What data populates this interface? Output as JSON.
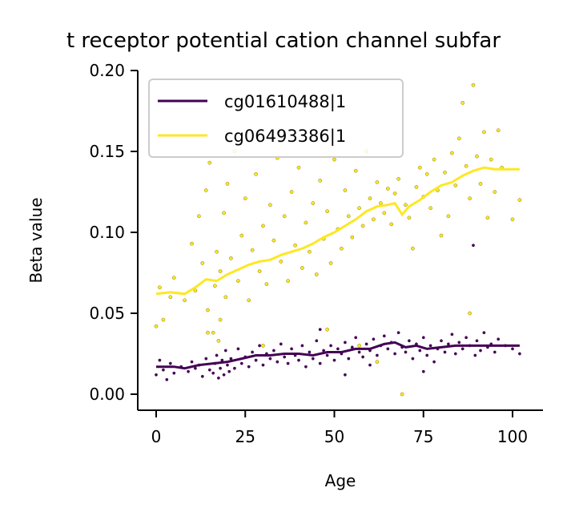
{
  "chart_data": {
    "type": "scatter",
    "title": "t receptor potential cation channel subfar",
    "xlabel": "Age",
    "ylabel": "Beta value",
    "xlim": [
      -5,
      107
    ],
    "ylim": [
      -0.01,
      0.2
    ],
    "xticks": [
      "0",
      "25",
      "50",
      "75",
      "100"
    ],
    "yticks": [
      "0.00",
      "0.05",
      "0.10",
      "0.15",
      "0.20"
    ],
    "grid": false,
    "legend_position": "top-left",
    "series": [
      {
        "name": "cg01610488|1",
        "color": "#440154",
        "trend": [
          [
            0,
            0.017
          ],
          [
            5,
            0.017
          ],
          [
            8,
            0.016
          ],
          [
            12,
            0.018
          ],
          [
            16,
            0.019
          ],
          [
            20,
            0.02
          ],
          [
            24,
            0.022
          ],
          [
            28,
            0.024
          ],
          [
            32,
            0.024
          ],
          [
            36,
            0.025
          ],
          [
            40,
            0.025
          ],
          [
            44,
            0.024
          ],
          [
            48,
            0.026
          ],
          [
            52,
            0.026
          ],
          [
            56,
            0.028
          ],
          [
            60,
            0.028
          ],
          [
            64,
            0.031
          ],
          [
            67,
            0.032
          ],
          [
            70,
            0.029
          ],
          [
            73,
            0.03
          ],
          [
            76,
            0.028
          ],
          [
            80,
            0.029
          ],
          [
            84,
            0.03
          ],
          [
            88,
            0.03
          ],
          [
            92,
            0.03
          ],
          [
            96,
            0.03
          ],
          [
            102,
            0.03
          ]
        ],
        "points": [
          [
            0,
            0.012
          ],
          [
            1,
            0.021
          ],
          [
            2,
            0.015
          ],
          [
            3,
            0.009
          ],
          [
            4,
            0.019
          ],
          [
            5,
            0.013
          ],
          [
            7,
            0.017
          ],
          [
            9,
            0.014
          ],
          [
            10,
            0.02
          ],
          [
            11,
            0.016
          ],
          [
            12,
            0.018
          ],
          [
            13,
            0.011
          ],
          [
            14,
            0.022
          ],
          [
            15,
            0.015
          ],
          [
            16,
            0.013
          ],
          [
            16.5,
            0.019
          ],
          [
            17,
            0.024
          ],
          [
            17.5,
            0.01
          ],
          [
            18,
            0.016
          ],
          [
            18.5,
            0.021
          ],
          [
            19,
            0.012
          ],
          [
            19.5,
            0.027
          ],
          [
            20,
            0.018
          ],
          [
            20.5,
            0.014
          ],
          [
            21,
            0.022
          ],
          [
            22,
            0.016
          ],
          [
            23,
            0.028
          ],
          [
            24,
            0.019
          ],
          [
            25,
            0.023
          ],
          [
            26,
            0.017
          ],
          [
            27,
            0.026
          ],
          [
            28,
            0.021
          ],
          [
            29,
            0.03
          ],
          [
            30,
            0.018
          ],
          [
            31,
            0.025
          ],
          [
            32,
            0.022
          ],
          [
            33,
            0.027
          ],
          [
            34,
            0.02
          ],
          [
            35,
            0.031
          ],
          [
            36,
            0.023
          ],
          [
            37,
            0.019
          ],
          [
            38,
            0.028
          ],
          [
            39,
            0.024
          ],
          [
            40,
            0.021
          ],
          [
            41,
            0.03
          ],
          [
            42,
            0.017
          ],
          [
            43,
            0.026
          ],
          [
            44,
            0.022
          ],
          [
            45,
            0.033
          ],
          [
            46,
            0.019
          ],
          [
            47,
            0.027
          ],
          [
            48,
            0.024
          ],
          [
            49,
            0.03
          ],
          [
            50,
            0.021
          ],
          [
            51,
            0.028
          ],
          [
            52,
            0.025
          ],
          [
            53,
            0.032
          ],
          [
            54,
            0.022
          ],
          [
            55,
            0.029
          ],
          [
            56,
            0.035
          ],
          [
            57,
            0.026
          ],
          [
            58,
            0.023
          ],
          [
            59,
            0.031
          ],
          [
            60,
            0.027
          ],
          [
            61,
            0.034
          ],
          [
            62,
            0.024
          ],
          [
            63,
            0.03
          ],
          [
            64,
            0.036
          ],
          [
            65,
            0.028
          ],
          [
            66,
            0.032
          ],
          [
            67,
            0.025
          ],
          [
            68,
            0.038
          ],
          [
            69,
            0.029
          ],
          [
            70,
            0.026
          ],
          [
            71,
            0.033
          ],
          [
            72,
            0.022
          ],
          [
            73,
            0.031
          ],
          [
            74,
            0.027
          ],
          [
            75,
            0.035
          ],
          [
            76,
            0.024
          ],
          [
            77,
            0.03
          ],
          [
            78,
            0.02
          ],
          [
            79,
            0.028
          ],
          [
            80,
            0.033
          ],
          [
            81,
            0.026
          ],
          [
            82,
            0.031
          ],
          [
            83,
            0.037
          ],
          [
            84,
            0.025
          ],
          [
            85,
            0.032
          ],
          [
            86,
            0.028
          ],
          [
            87,
            0.035
          ],
          [
            88,
            0.03
          ],
          [
            89,
            0.092
          ],
          [
            89.5,
            0.024
          ],
          [
            90,
            0.033
          ],
          [
            91,
            0.027
          ],
          [
            92,
            0.038
          ],
          [
            93,
            0.029
          ],
          [
            94,
            0.031
          ],
          [
            95,
            0.026
          ],
          [
            96,
            0.034
          ],
          [
            98,
            0.03
          ],
          [
            100,
            0.028
          ],
          [
            102,
            0.025
          ],
          [
            46,
            0.04
          ],
          [
            53,
            0.012
          ],
          [
            60,
            0.018
          ],
          [
            75,
            0.014
          ]
        ]
      },
      {
        "name": "cg06493386|1",
        "color": "#fde725",
        "trend": [
          [
            0,
            0.062
          ],
          [
            4,
            0.063
          ],
          [
            8,
            0.062
          ],
          [
            11,
            0.066
          ],
          [
            14,
            0.071
          ],
          [
            17,
            0.07
          ],
          [
            20,
            0.074
          ],
          [
            23,
            0.077
          ],
          [
            26,
            0.08
          ],
          [
            29,
            0.082
          ],
          [
            32,
            0.083
          ],
          [
            35,
            0.086
          ],
          [
            38,
            0.088
          ],
          [
            41,
            0.09
          ],
          [
            44,
            0.093
          ],
          [
            47,
            0.097
          ],
          [
            50,
            0.1
          ],
          [
            53,
            0.104
          ],
          [
            56,
            0.108
          ],
          [
            59,
            0.113
          ],
          [
            62,
            0.116
          ],
          [
            65,
            0.117
          ],
          [
            67,
            0.118
          ],
          [
            69,
            0.111
          ],
          [
            71,
            0.116
          ],
          [
            74,
            0.12
          ],
          [
            77,
            0.125
          ],
          [
            80,
            0.129
          ],
          [
            83,
            0.131
          ],
          [
            86,
            0.135
          ],
          [
            89,
            0.138
          ],
          [
            92,
            0.14
          ],
          [
            95,
            0.139
          ],
          [
            102,
            0.139
          ]
        ],
        "points": [
          [
            0,
            0.042
          ],
          [
            1,
            0.066
          ],
          [
            2,
            0.046
          ],
          [
            4,
            0.06
          ],
          [
            5,
            0.072
          ],
          [
            8,
            0.058
          ],
          [
            10,
            0.093
          ],
          [
            11,
            0.064
          ],
          [
            12,
            0.11
          ],
          [
            13,
            0.081
          ],
          [
            14,
            0.126
          ],
          [
            14.5,
            0.052
          ],
          [
            15,
            0.143
          ],
          [
            16,
            0.038
          ],
          [
            16.5,
            0.067
          ],
          [
            17,
            0.088
          ],
          [
            17.5,
            0.033
          ],
          [
            18,
            0.076
          ],
          [
            19,
            0.112
          ],
          [
            19.5,
            0.06
          ],
          [
            20,
            0.13
          ],
          [
            21,
            0.084
          ],
          [
            22,
            0.15
          ],
          [
            23,
            0.07
          ],
          [
            24,
            0.098
          ],
          [
            25,
            0.121
          ],
          [
            26,
            0.058
          ],
          [
            27,
            0.089
          ],
          [
            28,
            0.136
          ],
          [
            29,
            0.076
          ],
          [
            30,
            0.104
          ],
          [
            31,
            0.068
          ],
          [
            32,
            0.117
          ],
          [
            33,
            0.095
          ],
          [
            34,
            0.146
          ],
          [
            35,
            0.082
          ],
          [
            36,
            0.11
          ],
          [
            37,
            0.07
          ],
          [
            38,
            0.125
          ],
          [
            39,
            0.092
          ],
          [
            40,
            0.14
          ],
          [
            41,
            0.078
          ],
          [
            42,
            0.106
          ],
          [
            43,
            0.088
          ],
          [
            44,
            0.118
          ],
          [
            45,
            0.074
          ],
          [
            46,
            0.132
          ],
          [
            47,
            0.096
          ],
          [
            48,
            0.113
          ],
          [
            49,
            0.081
          ],
          [
            50,
            0.145
          ],
          [
            51,
            0.102
          ],
          [
            52,
            0.09
          ],
          [
            53,
            0.126
          ],
          [
            54,
            0.11
          ],
          [
            55,
            0.097
          ],
          [
            56,
            0.138
          ],
          [
            57,
            0.115
          ],
          [
            58,
            0.104
          ],
          [
            59,
            0.15
          ],
          [
            60,
            0.121
          ],
          [
            61,
            0.108
          ],
          [
            62,
            0.131
          ],
          [
            63,
            0.118
          ],
          [
            64,
            0.112
          ],
          [
            65,
            0.127
          ],
          [
            66,
            0.105
          ],
          [
            67,
            0.124
          ],
          [
            68,
            0.133
          ],
          [
            69,
            0.0
          ],
          [
            70,
            0.117
          ],
          [
            71,
            0.109
          ],
          [
            72,
            0.09
          ],
          [
            73,
            0.128
          ],
          [
            74,
            0.14
          ],
          [
            75,
            0.122
          ],
          [
            76,
            0.136
          ],
          [
            77,
            0.115
          ],
          [
            78,
            0.145
          ],
          [
            79,
            0.126
          ],
          [
            80,
            0.098
          ],
          [
            81,
            0.137
          ],
          [
            82,
            0.11
          ],
          [
            83,
            0.149
          ],
          [
            84,
            0.129
          ],
          [
            85,
            0.158
          ],
          [
            86,
            0.18
          ],
          [
            87,
            0.141
          ],
          [
            88,
            0.121
          ],
          [
            89,
            0.191
          ],
          [
            90,
            0.147
          ],
          [
            91,
            0.13
          ],
          [
            92,
            0.162
          ],
          [
            93,
            0.109
          ],
          [
            94,
            0.145
          ],
          [
            95,
            0.125
          ],
          [
            96,
            0.163
          ],
          [
            97,
            0.14
          ],
          [
            100,
            0.108
          ],
          [
            102,
            0.12
          ],
          [
            14.5,
            0.038
          ],
          [
            18,
            0.046
          ],
          [
            30,
            0.03
          ],
          [
            48,
            0.04
          ],
          [
            57,
            0.03
          ],
          [
            62,
            0.02
          ],
          [
            88,
            0.05
          ]
        ]
      }
    ]
  }
}
